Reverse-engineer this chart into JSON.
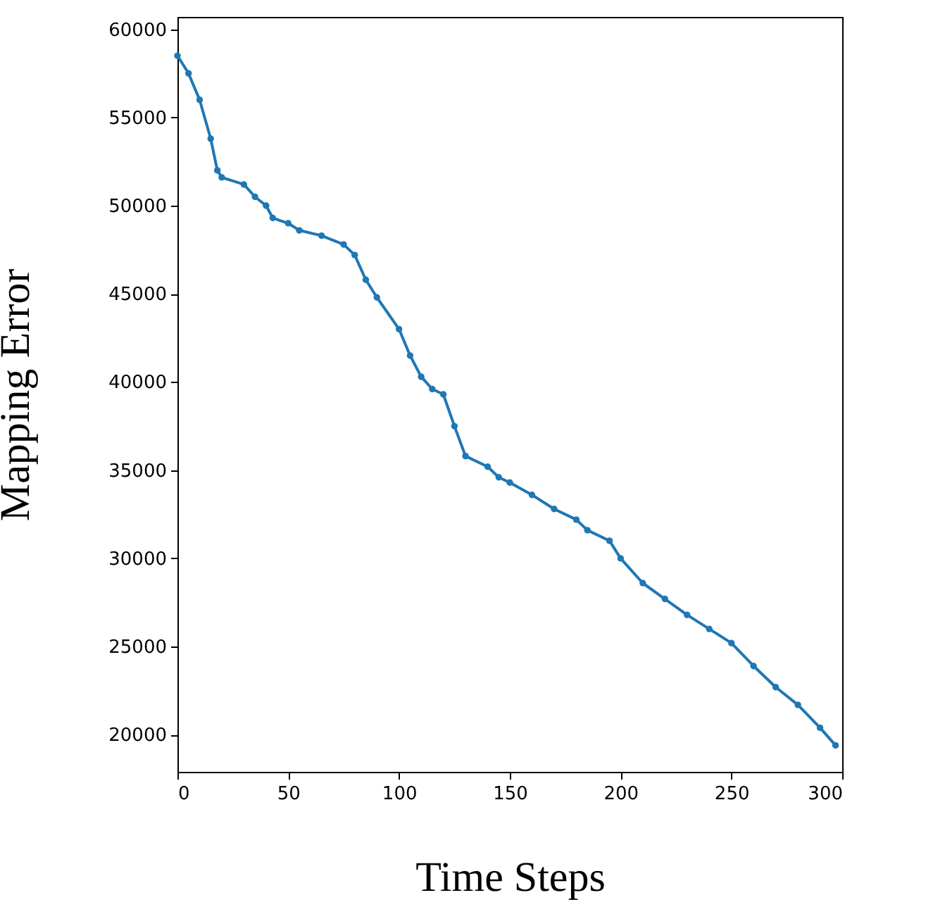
{
  "chart_data": {
    "type": "line",
    "xlabel": "Time Steps",
    "ylabel": "Mapping Error",
    "marker": "circle",
    "line_style": "solid",
    "xlim": [
      0,
      300
    ],
    "ylim": [
      17900,
      60700
    ],
    "xticks": [
      0,
      50,
      100,
      150,
      200,
      250,
      300
    ],
    "yticks": [
      20000,
      25000,
      30000,
      35000,
      40000,
      45000,
      50000,
      55000,
      60000
    ],
    "series": [
      {
        "color": "#1f77b4",
        "x": [
          0,
          5,
          10,
          15,
          18,
          20,
          30,
          35,
          40,
          43,
          50,
          55,
          65,
          75,
          80,
          85,
          90,
          100,
          105,
          110,
          115,
          120,
          125,
          130,
          140,
          145,
          150,
          160,
          170,
          180,
          185,
          195,
          200,
          210,
          220,
          230,
          240,
          250,
          260,
          270,
          280,
          290,
          297
        ],
        "values": [
          58500,
          57500,
          56000,
          53800,
          52000,
          51600,
          51200,
          50500,
          50000,
          49300,
          49000,
          48600,
          48300,
          47800,
          47200,
          45800,
          44800,
          43000,
          41500,
          40300,
          39600,
          39300,
          37500,
          35800,
          35200,
          34600,
          34300,
          33600,
          32800,
          32200,
          31600,
          31000,
          30000,
          28600,
          27700,
          26800,
          26000,
          25200,
          23900,
          22700,
          21700,
          20400,
          19400
        ]
      }
    ]
  }
}
